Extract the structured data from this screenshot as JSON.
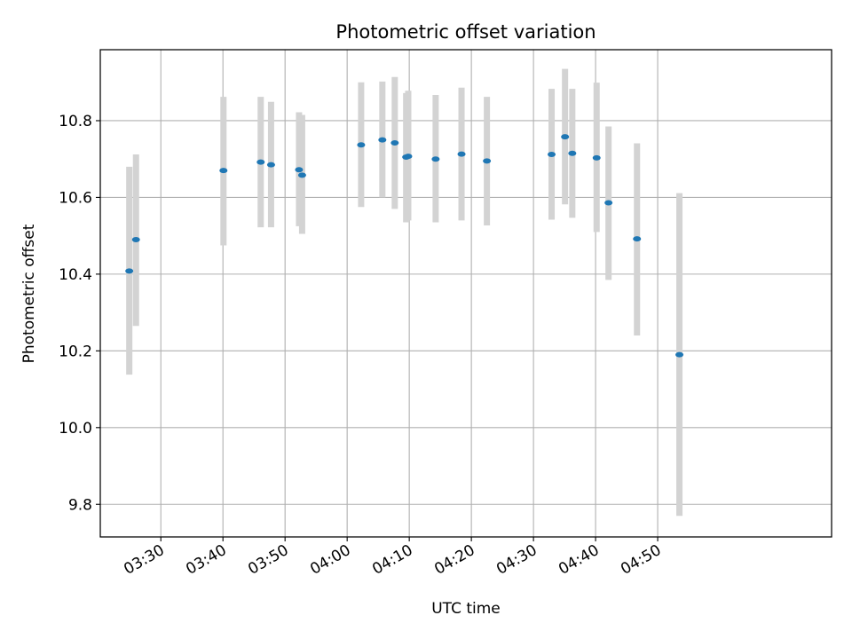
{
  "chart_data": {
    "type": "scatter",
    "title": "Photometric offset variation",
    "xlabel": "UTC time",
    "ylabel": "Photometric offset",
    "x_is_time": true,
    "xlim": [
      "03:20:15",
      "05:18:00"
    ],
    "ylim": [
      9.715,
      10.985
    ],
    "grid": true,
    "xticks": [
      "03:30",
      "03:40",
      "03:50",
      "04:00",
      "04:10",
      "04:20",
      "04:30",
      "04:40",
      "04:50"
    ],
    "yticks": [
      9.8,
      10.0,
      10.2,
      10.4,
      10.6,
      10.8
    ],
    "ytick_labels": [
      "9.8",
      "10.0",
      "10.2",
      "10.4",
      "10.6",
      "10.8"
    ],
    "colors": {
      "point": "#1f77b4",
      "errorbar": "#d3d3d3",
      "grid": "#b0b0b0"
    },
    "points": [
      {
        "x": "03:24:55",
        "y": 10.408,
        "ylow": 10.138,
        "yhigh": 10.68
      },
      {
        "x": "03:26:00",
        "y": 10.49,
        "ylow": 10.265,
        "yhigh": 10.712
      },
      {
        "x": "03:40:05",
        "y": 10.67,
        "ylow": 10.475,
        "yhigh": 10.862
      },
      {
        "x": "03:46:05",
        "y": 10.692,
        "ylow": 10.522,
        "yhigh": 10.862
      },
      {
        "x": "03:47:45",
        "y": 10.685,
        "ylow": 10.522,
        "yhigh": 10.849
      },
      {
        "x": "03:52:15",
        "y": 10.672,
        "ylow": 10.525,
        "yhigh": 10.822
      },
      {
        "x": "03:52:45",
        "y": 10.658,
        "ylow": 10.505,
        "yhigh": 10.815
      },
      {
        "x": "04:02:15",
        "y": 10.737,
        "ylow": 10.575,
        "yhigh": 10.9
      },
      {
        "x": "04:05:40",
        "y": 10.75,
        "ylow": 10.6,
        "yhigh": 10.902
      },
      {
        "x": "04:07:40",
        "y": 10.742,
        "ylow": 10.57,
        "yhigh": 10.914
      },
      {
        "x": "04:09:30",
        "y": 10.705,
        "ylow": 10.535,
        "yhigh": 10.872
      },
      {
        "x": "04:09:50",
        "y": 10.707,
        "ylow": 10.54,
        "yhigh": 10.878
      },
      {
        "x": "04:14:15",
        "y": 10.7,
        "ylow": 10.535,
        "yhigh": 10.867
      },
      {
        "x": "04:18:25",
        "y": 10.713,
        "ylow": 10.54,
        "yhigh": 10.886
      },
      {
        "x": "04:22:30",
        "y": 10.695,
        "ylow": 10.527,
        "yhigh": 10.862
      },
      {
        "x": "04:32:55",
        "y": 10.712,
        "ylow": 10.542,
        "yhigh": 10.883
      },
      {
        "x": "04:35:05",
        "y": 10.758,
        "ylow": 10.582,
        "yhigh": 10.935
      },
      {
        "x": "04:36:15",
        "y": 10.715,
        "ylow": 10.547,
        "yhigh": 10.883
      },
      {
        "x": "04:40:10",
        "y": 10.703,
        "ylow": 10.51,
        "yhigh": 10.899
      },
      {
        "x": "04:42:05",
        "y": 10.586,
        "ylow": 10.385,
        "yhigh": 10.785
      },
      {
        "x": "04:46:40",
        "y": 10.492,
        "ylow": 10.24,
        "yhigh": 10.741
      },
      {
        "x": "04:53:30",
        "y": 10.19,
        "ylow": 9.77,
        "yhigh": 10.611
      }
    ]
  }
}
